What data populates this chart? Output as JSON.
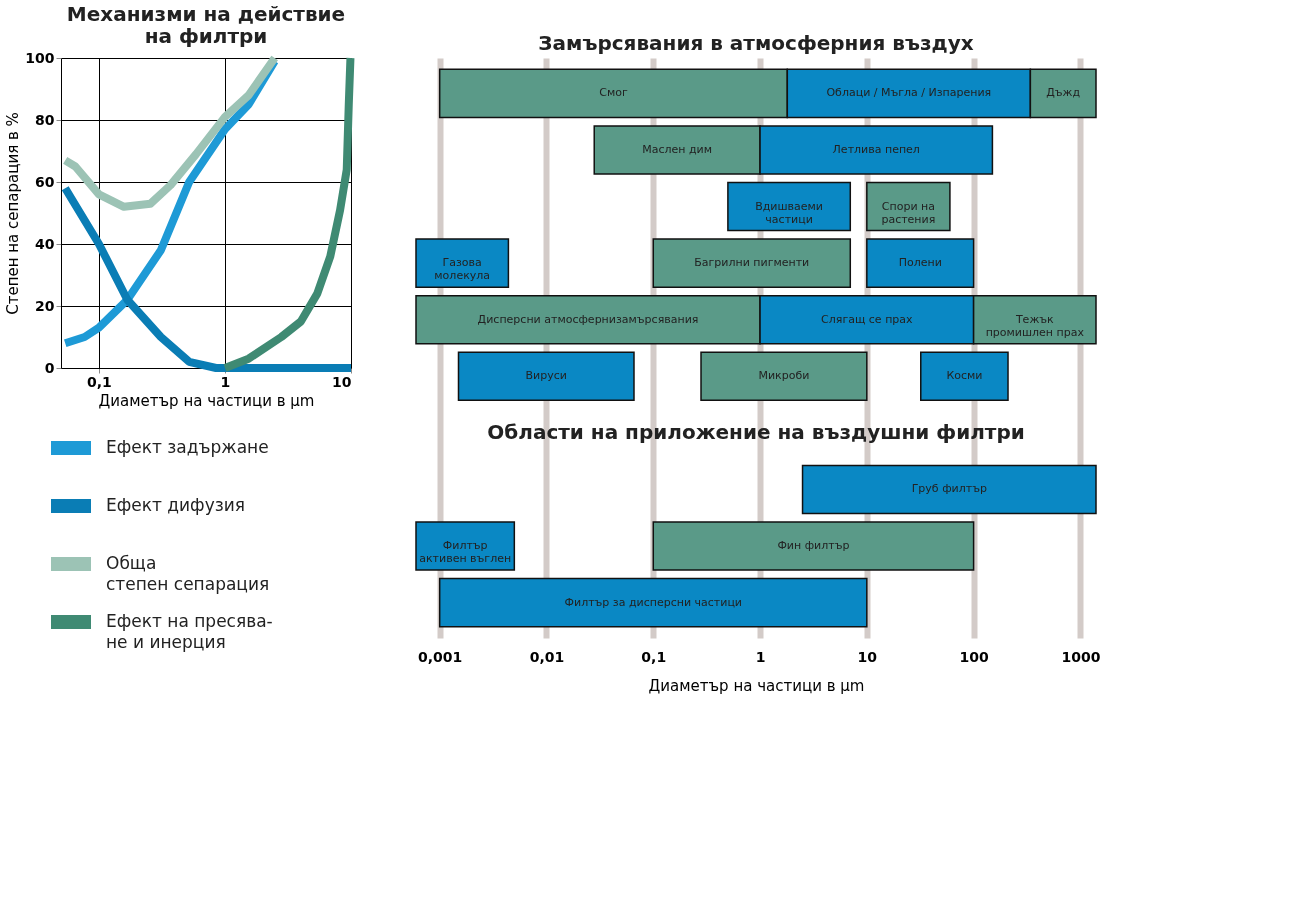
{
  "chart_data": [
    {
      "type": "line",
      "title": "Механизми на действие\nна филтри",
      "xlabel": "Диаметър на частици в µm",
      "ylabel": "Степен на сепарация в %",
      "log": "x",
      "grid": true,
      "legend": "bottom",
      "xlim": [
        0.05,
        10
      ],
      "ylim": [
        0,
        100
      ],
      "xticks": [
        {
          "value": 0.1,
          "label": "0,1"
        },
        1,
        10
      ],
      "yticks": [
        0,
        20,
        40,
        60,
        80,
        100
      ],
      "series": [
        {
          "name": "Ефект задържане",
          "color": "#1e9ad6",
          "x": [
            0.054,
            0.077,
            0.1,
            0.168,
            0.31,
            0.52,
            1,
            1.54,
            2.48
          ],
          "values": [
            8,
            10,
            13,
            22,
            38,
            60,
            77,
            85,
            99
          ]
        },
        {
          "name": "Ефект дифузия",
          "color": "#0a7db5",
          "x": [
            0.054,
            0.1,
            0.168,
            0.31,
            0.52,
            0.85,
            10
          ],
          "values": [
            58,
            40,
            22,
            10,
            2,
            0,
            0
          ]
        },
        {
          "name": "Обща\nстепен сепарация",
          "color": "#9cc3b5",
          "x": [
            0.054,
            0.065,
            0.1,
            0.158,
            0.256,
            0.37,
            0.59,
            1,
            1.54,
            2.48
          ],
          "values": [
            67,
            65,
            56,
            52,
            53,
            59,
            69,
            81,
            88,
            100
          ]
        },
        {
          "name": "Ефект на пресява-\nне и инерция",
          "color": "#3f8a73",
          "x": [
            1,
            1.54,
            2.8,
            4.0,
            5.4,
            6.85,
            8.2,
            9.25,
            9.6,
            9.9
          ],
          "values": [
            0,
            3,
            10,
            15,
            24,
            36,
            51,
            64,
            85,
            100
          ]
        }
      ]
    },
    {
      "type": "bar",
      "orientation": "horizontal",
      "title": "Замърсявания в атмосферния въздух",
      "xlabel": "Диаметър на частици в µm",
      "log": "x",
      "grid": "x",
      "annotations": [
        "Области на приложение на въздушни филтри"
      ],
      "xlim": [
        0.0006,
        1400
      ],
      "xticks": [
        {
          "value": 0.001,
          "label": "0,001"
        },
        {
          "value": 0.01,
          "label": "0,01"
        },
        {
          "value": 0.1,
          "label": "0,1"
        },
        1,
        10,
        100,
        1000
      ],
      "categories": [
        null,
        null,
        null,
        null,
        null,
        null,
        null,
        null,
        null,
        null
      ],
      "series": [
        {
          "base": [
            0.001,
            0.028,
            0.5,
            0.0006,
            0.0006,
            0.0015,
            null,
            2.5,
            0.0006,
            0.001
          ],
          "values": [
            1.799,
            0.972,
            6.5,
            0.0038,
            0.9994,
            0.0645,
            null,
            1397.5,
            0.0044,
            9.999
          ],
          "colors": [
            "#5a9a88",
            "#5a9a88",
            "#0a88c4",
            "#0a88c4",
            "#5a9a88",
            "#0a88c4",
            null,
            "#0a88c4",
            "#0a88c4",
            "#0a88c4"
          ],
          "value_labels": [
            "Смог",
            "Маслен дим",
            "Вдишваеми\nчастици",
            "Газова\nмолекула",
            "Дисперсни атмосфернизамърсявания",
            "Вируси",
            null,
            "Груб филтър",
            "Филтър\nактивен въглен",
            "Филтър за дисперсни частици"
          ]
        },
        {
          "base": [
            1.8,
            1,
            10,
            0.1,
            1,
            0.28,
            null,
            null,
            0.1,
            null
          ],
          "values": [
            338.2,
            149,
            50,
            6.9,
            99,
            9.72,
            null,
            null,
            99.9,
            null
          ],
          "colors": [
            "#0a88c4",
            "#0a88c4",
            "#5a9a88",
            "#5a9a88",
            "#0a88c4",
            "#5a9a88",
            null,
            null,
            "#5a9a88",
            null
          ],
          "value_labels": [
            "Облаци / Мъгла / Изпарения",
            "Летлива пепел",
            "Спори на\nрастения",
            "Багрилни пигменти",
            "Слягащ се прах",
            "Микроби",
            null,
            null,
            "Фин филтър",
            null
          ]
        },
        {
          "base": [
            340,
            null,
            null,
            10,
            100,
            32,
            null,
            null,
            null,
            null
          ],
          "values": [
            1060,
            null,
            null,
            90,
            1300,
            178,
            null,
            null,
            null,
            null
          ],
          "colors": [
            "#5a9a88",
            null,
            null,
            "#0a88c4",
            "#5a9a88",
            "#0a88c4",
            null,
            null,
            null,
            null
          ],
          "value_labels": [
            "Дъжд",
            null,
            null,
            "Полени",
            "Тежък\nпромишлен прах",
            "Косми",
            null,
            null,
            null,
            null
          ]
        }
      ]
    }
  ]
}
